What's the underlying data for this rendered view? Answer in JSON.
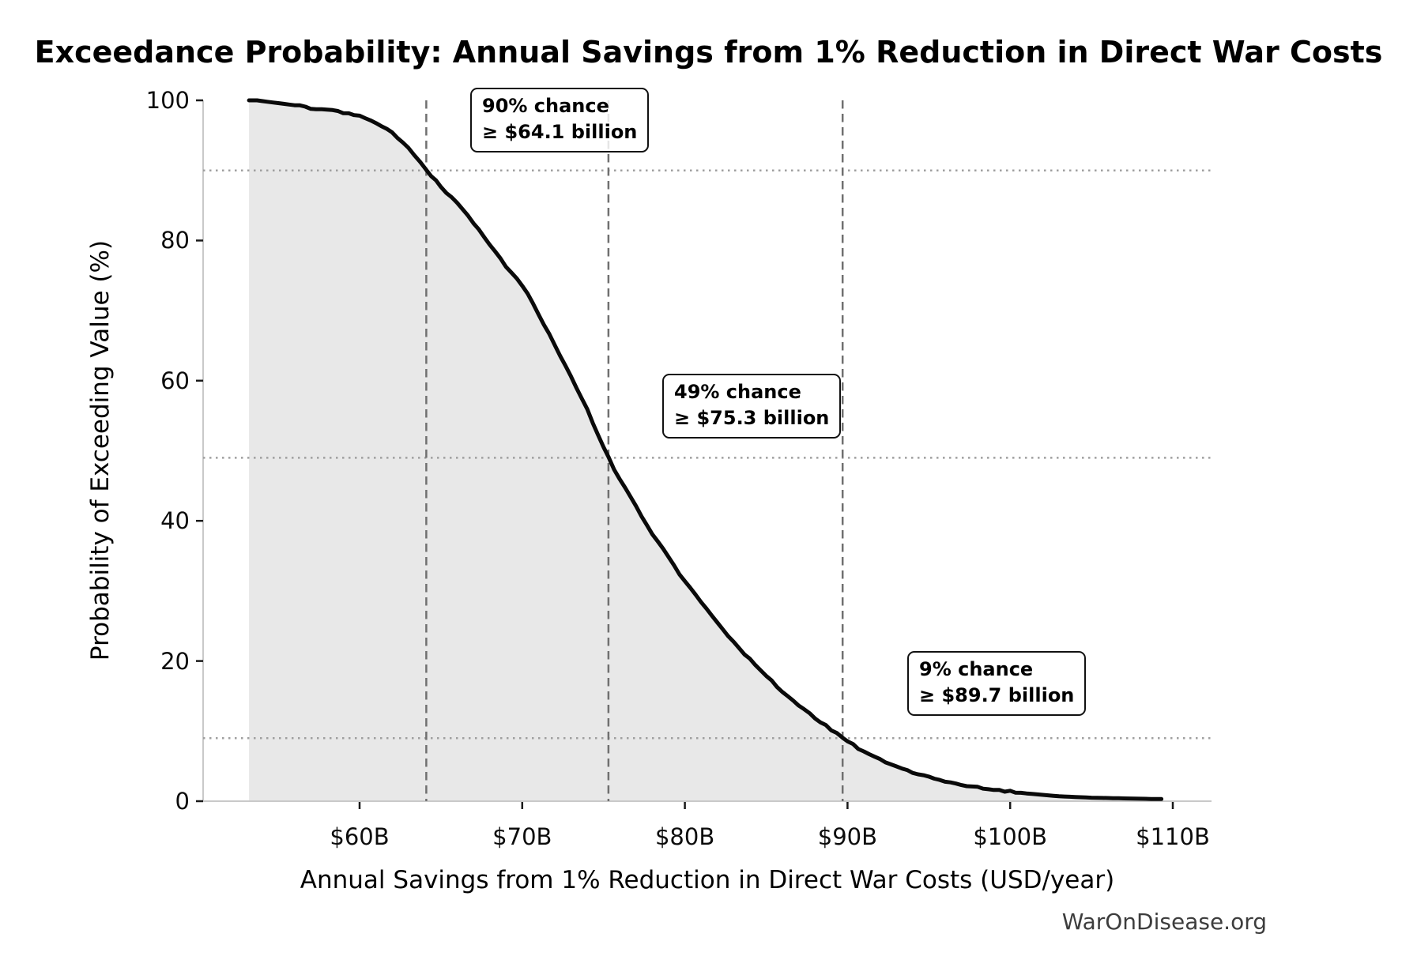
{
  "title": "Exceedance Probability: Annual Savings from 1% Reduction in Direct War Costs",
  "watermark": "WarOnDisease.org",
  "colors": {
    "curve": "#0a0a0a",
    "fill_under_curve": "#e8e8e8",
    "dashed_reference": "#707070",
    "dotted_reference": "#9f9f9f",
    "spine": "#c9c9c9",
    "tick_mark": "#1a1a1a",
    "text": "#000000",
    "watermark_text": "#3d3d3d",
    "annotation_border": "#111111"
  },
  "chart_data": {
    "type": "line",
    "title": "Exceedance Probability: Annual Savings from 1% Reduction in Direct War Costs",
    "xlabel": "Annual Savings from 1% Reduction in Direct War Costs (USD/year)",
    "ylabel": "Probability of Exceeding Value (%)",
    "xlim_billion": [
      50.2,
      112.4
    ],
    "ylim_percent": [
      0,
      100
    ],
    "grid": "reference lines only",
    "legend": "none",
    "x_ticks": [
      {
        "value": 60,
        "label": "$60B"
      },
      {
        "value": 70,
        "label": "$70B"
      },
      {
        "value": 80,
        "label": "$80B"
      },
      {
        "value": 90,
        "label": "$90B"
      },
      {
        "value": 100,
        "label": "$100B"
      },
      {
        "value": 110,
        "label": "$110B"
      }
    ],
    "y_ticks": [
      {
        "value": 0,
        "label": "0"
      },
      {
        "value": 20,
        "label": "20"
      },
      {
        "value": 40,
        "label": "40"
      },
      {
        "value": 60,
        "label": "60"
      },
      {
        "value": 80,
        "label": "80"
      },
      {
        "value": 100,
        "label": "100"
      }
    ],
    "series": [
      {
        "name": "exceedance-probability-curve",
        "style": "thick black line with light gray fill to zero",
        "points_billion_vs_percent": [
          [
            53.2,
            100
          ],
          [
            53.7,
            100
          ],
          [
            54,
            99.9
          ],
          [
            55,
            99.6
          ],
          [
            56,
            99.3
          ],
          [
            57,
            98.9
          ],
          [
            58,
            98.6
          ],
          [
            59,
            98.2
          ],
          [
            60,
            97.8
          ],
          [
            61,
            96.9
          ],
          [
            62,
            95.5
          ],
          [
            63,
            93.3
          ],
          [
            64.1,
            90
          ],
          [
            65,
            87.7
          ],
          [
            66,
            85.3
          ],
          [
            67,
            82.5
          ],
          [
            68,
            79.4
          ],
          [
            69,
            76.3
          ],
          [
            70,
            73.6
          ],
          [
            71,
            69.6
          ],
          [
            72,
            65.1
          ],
          [
            73,
            60.5
          ],
          [
            74,
            55.8
          ],
          [
            75,
            50.6
          ],
          [
            75.3,
            49
          ],
          [
            76,
            45.9
          ],
          [
            77,
            42
          ],
          [
            78,
            38.2
          ],
          [
            79,
            34.7
          ],
          [
            80,
            31.4
          ],
          [
            81,
            28.3
          ],
          [
            82,
            25.4
          ],
          [
            83,
            22.7
          ],
          [
            84,
            20.2
          ],
          [
            85,
            17.9
          ],
          [
            86,
            15.7
          ],
          [
            87,
            13.7
          ],
          [
            88,
            11.9
          ],
          [
            89,
            10.2
          ],
          [
            89.7,
            9
          ],
          [
            90,
            8.5
          ],
          [
            91,
            7.1
          ],
          [
            92,
            5.9
          ],
          [
            93,
            4.9
          ],
          [
            94,
            4.1
          ],
          [
            95,
            3.4
          ],
          [
            96,
            2.9
          ],
          [
            97,
            2.4
          ],
          [
            98,
            2.0
          ],
          [
            99,
            1.7
          ],
          [
            100,
            1.4
          ],
          [
            101,
            1.1
          ],
          [
            102,
            0.9
          ],
          [
            103,
            0.7
          ],
          [
            104,
            0.6
          ],
          [
            105,
            0.5
          ],
          [
            106,
            0.45
          ],
          [
            107,
            0.4
          ],
          [
            108,
            0.35
          ],
          [
            109,
            0.3
          ],
          [
            109.3,
            0.3
          ]
        ]
      }
    ],
    "reference_lines": {
      "vertical_dashed_x_billion": [
        64.1,
        75.3,
        89.7
      ],
      "horizontal_dotted_probability": [
        90,
        49,
        9
      ]
    },
    "annotations": [
      {
        "line1": "90% chance",
        "line2": "≥ $64.1 billion",
        "x_billion": 64.1,
        "probability": 90
      },
      {
        "line1": "49% chance",
        "line2": "≥ $75.3 billion",
        "x_billion": 75.3,
        "probability": 49
      },
      {
        "line1": "9% chance",
        "line2": "≥ $89.7 billion",
        "x_billion": 89.7,
        "probability": 9
      }
    ]
  }
}
